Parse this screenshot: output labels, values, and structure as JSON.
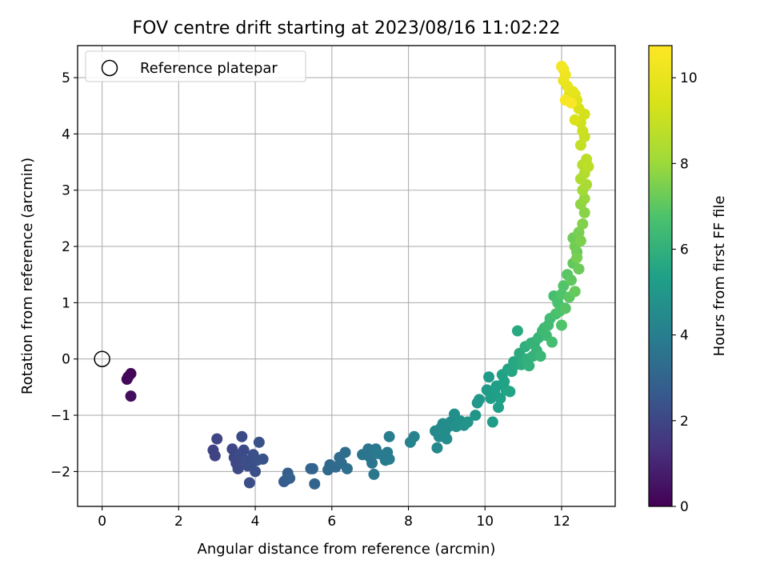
{
  "chart_data": {
    "type": "scatter",
    "title": "FOV centre drift starting at 2023/08/16 11:02:22",
    "xlabel": "Angular distance from reference (arcmin)",
    "ylabel": "Rotation from reference (arcmin)",
    "xlim": [
      -0.64,
      13.4
    ],
    "ylim": [
      -2.62,
      5.57
    ],
    "xticks": [
      0,
      2,
      4,
      6,
      8,
      10,
      12
    ],
    "yticks": [
      -2,
      -1,
      0,
      1,
      2,
      3,
      4,
      5
    ],
    "grid": true,
    "legend": {
      "placement": "top-left",
      "entries": [
        "Reference platepar"
      ]
    },
    "colorbar": {
      "label": "Hours from first FF file",
      "range": [
        0,
        10.75
      ],
      "ticks": [
        0,
        2,
        4,
        6,
        8,
        10
      ],
      "colormap": "viridis"
    },
    "reference_point": {
      "x": 0,
      "y": 0,
      "label": "Reference platepar"
    },
    "points": [
      [
        0.68,
        -0.32,
        0.0
      ],
      [
        0.75,
        -0.26,
        0.1
      ],
      [
        0.65,
        -0.36,
        0.2
      ],
      [
        0.75,
        -0.66,
        0.3
      ],
      [
        2.9,
        -1.62,
        1.9
      ],
      [
        2.95,
        -1.72,
        1.9
      ],
      [
        3.0,
        -1.42,
        1.95
      ],
      [
        3.4,
        -1.6,
        2.0
      ],
      [
        3.45,
        -1.75,
        2.0
      ],
      [
        3.5,
        -1.85,
        2.05
      ],
      [
        3.55,
        -1.95,
        2.1
      ],
      [
        3.6,
        -1.7,
        2.1
      ],
      [
        3.65,
        -1.38,
        2.15
      ],
      [
        3.7,
        -1.62,
        2.15
      ],
      [
        3.75,
        -1.8,
        2.2
      ],
      [
        3.8,
        -1.9,
        2.2
      ],
      [
        3.85,
        -2.2,
        2.25
      ],
      [
        3.9,
        -1.85,
        2.25
      ],
      [
        3.95,
        -1.7,
        2.3
      ],
      [
        4.0,
        -2.0,
        2.3
      ],
      [
        4.05,
        -1.8,
        2.35
      ],
      [
        4.1,
        -1.48,
        2.35
      ],
      [
        4.2,
        -1.78,
        2.4
      ],
      [
        4.75,
        -2.18,
        2.7
      ],
      [
        4.8,
        -2.15,
        2.75
      ],
      [
        4.85,
        -2.03,
        2.75
      ],
      [
        4.9,
        -2.12,
        2.8
      ],
      [
        5.45,
        -1.95,
        3.0
      ],
      [
        5.5,
        -1.95,
        3.0
      ],
      [
        5.55,
        -2.22,
        3.05
      ],
      [
        5.9,
        -1.97,
        3.2
      ],
      [
        5.95,
        -1.88,
        3.2
      ],
      [
        6.1,
        -1.92,
        3.25
      ],
      [
        6.2,
        -1.75,
        3.3
      ],
      [
        6.25,
        -1.85,
        3.3
      ],
      [
        6.35,
        -1.66,
        3.35
      ],
      [
        6.4,
        -1.95,
        3.4
      ],
      [
        6.8,
        -1.7,
        3.6
      ],
      [
        6.95,
        -1.6,
        3.65
      ],
      [
        7.0,
        -1.75,
        3.7
      ],
      [
        7.05,
        -1.85,
        3.7
      ],
      [
        7.1,
        -2.05,
        3.75
      ],
      [
        7.15,
        -1.6,
        3.75
      ],
      [
        7.2,
        -1.68,
        3.8
      ],
      [
        7.35,
        -1.72,
        3.85
      ],
      [
        7.4,
        -1.8,
        3.85
      ],
      [
        7.45,
        -1.66,
        3.9
      ],
      [
        7.5,
        -1.78,
        3.9
      ],
      [
        7.5,
        -1.38,
        3.95
      ],
      [
        8.05,
        -1.48,
        4.15
      ],
      [
        8.15,
        -1.38,
        4.2
      ],
      [
        8.7,
        -1.28,
        4.4
      ],
      [
        8.75,
        -1.58,
        4.4
      ],
      [
        8.8,
        -1.38,
        4.45
      ],
      [
        8.85,
        -1.22,
        4.5
      ],
      [
        8.9,
        -1.15,
        4.5
      ],
      [
        8.95,
        -1.3,
        4.55
      ],
      [
        9.0,
        -1.42,
        4.55
      ],
      [
        9.05,
        -1.2,
        4.6
      ],
      [
        9.1,
        -1.12,
        4.6
      ],
      [
        9.2,
        -0.98,
        4.65
      ],
      [
        9.25,
        -1.2,
        4.7
      ],
      [
        9.35,
        -1.1,
        4.75
      ],
      [
        9.45,
        -1.18,
        4.8
      ],
      [
        9.55,
        -1.12,
        4.85
      ],
      [
        9.75,
        -1.0,
        4.9
      ],
      [
        9.8,
        -0.78,
        4.95
      ],
      [
        9.85,
        -0.72,
        5.0
      ],
      [
        10.05,
        -0.55,
        5.1
      ],
      [
        10.1,
        -0.32,
        5.15
      ],
      [
        10.15,
        -0.7,
        5.2
      ],
      [
        10.2,
        -1.12,
        5.2
      ],
      [
        10.25,
        -0.6,
        5.25
      ],
      [
        10.3,
        -0.48,
        5.3
      ],
      [
        10.35,
        -0.86,
        5.3
      ],
      [
        10.4,
        -0.7,
        5.35
      ],
      [
        10.45,
        -0.28,
        5.4
      ],
      [
        10.5,
        -0.4,
        5.4
      ],
      [
        10.55,
        -0.55,
        5.45
      ],
      [
        10.6,
        -0.18,
        5.5
      ],
      [
        10.65,
        -0.58,
        5.5
      ],
      [
        10.7,
        -0.22,
        5.55
      ],
      [
        10.75,
        -0.05,
        5.6
      ],
      [
        10.8,
        -0.1,
        5.65
      ],
      [
        10.85,
        0.5,
        5.7
      ],
      [
        10.9,
        0.1,
        5.75
      ],
      [
        10.95,
        -0.1,
        5.8
      ],
      [
        11.0,
        -0.02,
        5.85
      ],
      [
        11.05,
        0.22,
        5.9
      ],
      [
        11.1,
        0.0,
        5.95
      ],
      [
        11.15,
        -0.12,
        6.0
      ],
      [
        11.2,
        0.28,
        6.05
      ],
      [
        11.25,
        0.05,
        6.05
      ],
      [
        11.3,
        0.3,
        6.1
      ],
      [
        11.35,
        0.15,
        6.15
      ],
      [
        11.4,
        0.38,
        6.2
      ],
      [
        11.45,
        0.05,
        6.25
      ],
      [
        11.5,
        0.5,
        6.3
      ],
      [
        11.55,
        0.55,
        6.35
      ],
      [
        11.6,
        0.42,
        6.4
      ],
      [
        11.65,
        0.6,
        6.45
      ],
      [
        11.7,
        0.72,
        6.5
      ],
      [
        11.75,
        0.3,
        6.55
      ],
      [
        11.8,
        1.12,
        6.6
      ],
      [
        11.85,
        0.8,
        6.65
      ],
      [
        11.9,
        1.0,
        6.7
      ],
      [
        11.95,
        0.85,
        6.75
      ],
      [
        12.0,
        1.15,
        6.8
      ],
      [
        12.0,
        0.6,
        6.8
      ],
      [
        12.05,
        1.3,
        6.85
      ],
      [
        12.1,
        0.9,
        6.9
      ],
      [
        12.15,
        1.5,
        6.95
      ],
      [
        12.2,
        1.1,
        7.0
      ],
      [
        12.25,
        1.4,
        7.05
      ],
      [
        12.3,
        1.7,
        7.1
      ],
      [
        12.35,
        1.2,
        7.15
      ],
      [
        12.4,
        1.9,
        7.2
      ],
      [
        12.45,
        1.6,
        7.25
      ],
      [
        12.3,
        2.15,
        7.3
      ],
      [
        12.35,
        2.0,
        7.35
      ],
      [
        12.4,
        1.8,
        7.4
      ],
      [
        12.45,
        2.25,
        7.45
      ],
      [
        12.5,
        2.1,
        7.5
      ],
      [
        12.55,
        2.4,
        7.6
      ],
      [
        12.6,
        2.6,
        7.7
      ],
      [
        12.5,
        2.75,
        7.8
      ],
      [
        12.6,
        2.85,
        7.9
      ],
      [
        12.55,
        3.0,
        8.1
      ],
      [
        12.65,
        3.1,
        8.3
      ],
      [
        12.5,
        3.2,
        8.4
      ],
      [
        12.6,
        3.3,
        8.5
      ],
      [
        12.55,
        3.45,
        8.6
      ],
      [
        12.65,
        3.55,
        8.7
      ],
      [
        12.7,
        3.42,
        8.75
      ],
      [
        12.5,
        3.8,
        8.9
      ],
      [
        12.6,
        3.95,
        9.0
      ],
      [
        12.55,
        4.05,
        9.1
      ],
      [
        12.5,
        4.2,
        9.2
      ],
      [
        12.6,
        4.35,
        9.3
      ],
      [
        12.45,
        4.45,
        9.45
      ],
      [
        12.35,
        4.25,
        9.5
      ],
      [
        12.4,
        4.6,
        9.6
      ],
      [
        12.35,
        4.7,
        9.7
      ],
      [
        12.2,
        4.7,
        9.8
      ],
      [
        12.3,
        4.75,
        9.9
      ],
      [
        12.15,
        4.85,
        10.0
      ],
      [
        12.05,
        4.95,
        10.1
      ],
      [
        12.1,
        5.05,
        10.2
      ],
      [
        12.05,
        5.15,
        10.3
      ],
      [
        12.0,
        5.2,
        10.4
      ],
      [
        12.1,
        4.6,
        10.5
      ],
      [
        12.25,
        4.55,
        10.6
      ]
    ]
  }
}
